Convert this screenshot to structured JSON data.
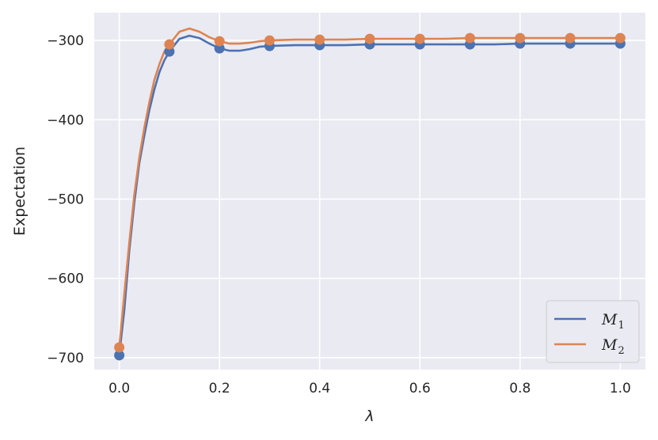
{
  "chart_data": {
    "type": "line",
    "xlabel": "λ",
    "ylabel": "Expectation",
    "xlim": [
      -0.05,
      1.05
    ],
    "ylim": [
      -715,
      -265
    ],
    "xticks": [
      0.0,
      0.2,
      0.4,
      0.6,
      0.8,
      1.0
    ],
    "xtick_labels": [
      "0.0",
      "0.2",
      "0.4",
      "0.6",
      "0.8",
      "1.0"
    ],
    "yticks": [
      -700,
      -600,
      -500,
      -400,
      -300
    ],
    "ytick_labels": [
      "−700",
      "−600",
      "−500",
      "−400",
      "−300"
    ],
    "grid": true,
    "legend_position": "lower-right",
    "series": [
      {
        "name": "M1",
        "legend_base": "M",
        "legend_sub": "1",
        "color": "#4c72b0",
        "line_x": [
          0.0,
          0.01,
          0.02,
          0.03,
          0.04,
          0.05,
          0.06,
          0.07,
          0.08,
          0.09,
          0.1,
          0.12,
          0.14,
          0.16,
          0.18,
          0.2,
          0.22,
          0.24,
          0.26,
          0.28,
          0.3,
          0.35,
          0.4,
          0.45,
          0.5,
          0.55,
          0.6,
          0.65,
          0.7,
          0.75,
          0.8,
          0.85,
          0.9,
          0.95,
          1.0
        ],
        "line_y": [
          -697,
          -640,
          -565,
          -505,
          -455,
          -420,
          -388,
          -362,
          -340,
          -325,
          -314,
          -298,
          -294,
          -297,
          -304,
          -310,
          -313,
          -313,
          -311,
          -308,
          -307,
          -306,
          -306,
          -306,
          -305,
          -305,
          -305,
          -305,
          -305,
          -305,
          -304,
          -304,
          -304,
          -304,
          -304
        ],
        "marker_x": [
          0.0,
          0.1,
          0.2,
          0.3,
          0.4,
          0.5,
          0.6,
          0.7,
          0.8,
          0.9,
          1.0
        ],
        "marker_y": [
          -697,
          -314,
          -310,
          -307,
          -306,
          -305,
          -305,
          -305,
          -304,
          -304,
          -304
        ]
      },
      {
        "name": "M2",
        "legend_base": "M",
        "legend_sub": "2",
        "color": "#dd8452",
        "line_x": [
          0.0,
          0.01,
          0.02,
          0.03,
          0.04,
          0.05,
          0.06,
          0.07,
          0.08,
          0.09,
          0.1,
          0.12,
          0.14,
          0.16,
          0.18,
          0.2,
          0.22,
          0.24,
          0.26,
          0.28,
          0.3,
          0.35,
          0.4,
          0.45,
          0.5,
          0.55,
          0.6,
          0.65,
          0.7,
          0.75,
          0.8,
          0.85,
          0.9,
          0.95,
          1.0
        ],
        "line_y": [
          -687,
          -620,
          -555,
          -495,
          -448,
          -410,
          -378,
          -350,
          -330,
          -314,
          -305,
          -289,
          -285,
          -289,
          -296,
          -301,
          -304,
          -304,
          -303,
          -301,
          -300,
          -299,
          -299,
          -299,
          -298,
          -298,
          -298,
          -298,
          -297,
          -297,
          -297,
          -297,
          -297,
          -297,
          -297
        ],
        "marker_x": [
          0.0,
          0.1,
          0.2,
          0.3,
          0.4,
          0.5,
          0.6,
          0.7,
          0.8,
          0.9,
          1.0
        ],
        "marker_y": [
          -687,
          -305,
          -301,
          -300,
          -299,
          -298,
          -298,
          -297,
          -297,
          -297,
          -297
        ]
      }
    ]
  }
}
